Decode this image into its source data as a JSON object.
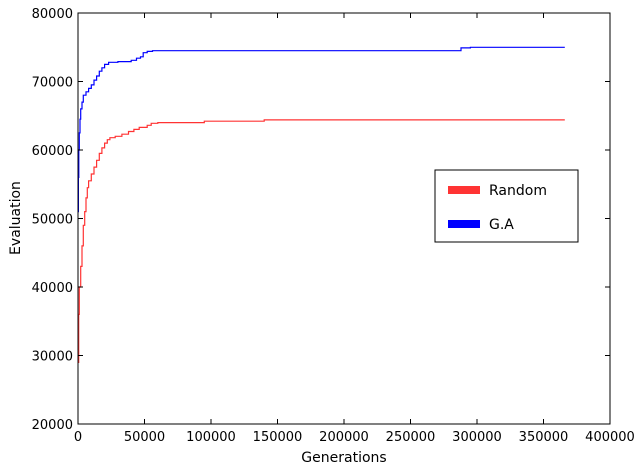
{
  "chart_data": {
    "type": "line",
    "title": "",
    "xlabel": "Generations",
    "ylabel": "Evaluation",
    "xlim": [
      0,
      400000
    ],
    "ylim": [
      20000,
      80000
    ],
    "x_ticks": [
      0,
      50000,
      100000,
      150000,
      200000,
      250000,
      300000,
      350000,
      400000
    ],
    "x_tick_labels": [
      "0",
      "50000",
      "100000",
      "150000",
      "200000",
      "250000",
      "300000",
      "350000",
      "400000"
    ],
    "y_ticks": [
      20000,
      30000,
      40000,
      50000,
      60000,
      70000,
      80000
    ],
    "y_tick_labels": [
      "20000",
      "30000",
      "40000",
      "50000",
      "60000",
      "70000",
      "80000"
    ],
    "grid": false,
    "legend_position": "center-right",
    "series": [
      {
        "name": "Random",
        "color": "#ff3333",
        "step": true,
        "points": [
          [
            0,
            29000
          ],
          [
            500,
            36000
          ],
          [
            1000,
            40000
          ],
          [
            2000,
            43000
          ],
          [
            3000,
            46000
          ],
          [
            4000,
            49000
          ],
          [
            5000,
            51000
          ],
          [
            6000,
            53000
          ],
          [
            7000,
            54500
          ],
          [
            8000,
            55500
          ],
          [
            10000,
            56500
          ],
          [
            12000,
            57500
          ],
          [
            14000,
            58500
          ],
          [
            16000,
            59500
          ],
          [
            18000,
            60300
          ],
          [
            20000,
            61000
          ],
          [
            22000,
            61500
          ],
          [
            24000,
            61800
          ],
          [
            28000,
            62000
          ],
          [
            33000,
            62300
          ],
          [
            38000,
            62700
          ],
          [
            42000,
            63000
          ],
          [
            46000,
            63300
          ],
          [
            52000,
            63600
          ],
          [
            55000,
            63900
          ],
          [
            60000,
            64000
          ],
          [
            95000,
            64200
          ],
          [
            140000,
            64400
          ],
          [
            366000,
            64400
          ]
        ]
      },
      {
        "name": "G.A",
        "color": "#0000ff",
        "step": true,
        "points": [
          [
            0,
            51000
          ],
          [
            300,
            56000
          ],
          [
            600,
            60000
          ],
          [
            1000,
            62500
          ],
          [
            1500,
            64500
          ],
          [
            2000,
            66000
          ],
          [
            3000,
            67000
          ],
          [
            4000,
            68000
          ],
          [
            6000,
            68500
          ],
          [
            8000,
            69000
          ],
          [
            10000,
            69500
          ],
          [
            12000,
            70200
          ],
          [
            14000,
            70800
          ],
          [
            16000,
            71500
          ],
          [
            18000,
            72000
          ],
          [
            20000,
            72500
          ],
          [
            23000,
            72800
          ],
          [
            30000,
            72900
          ],
          [
            40000,
            73100
          ],
          [
            44000,
            73400
          ],
          [
            47000,
            73600
          ],
          [
            49000,
            74200
          ],
          [
            52000,
            74400
          ],
          [
            56000,
            74500
          ],
          [
            287000,
            74500
          ],
          [
            288000,
            74900
          ],
          [
            295000,
            75000
          ],
          [
            366000,
            75000
          ]
        ]
      }
    ]
  }
}
